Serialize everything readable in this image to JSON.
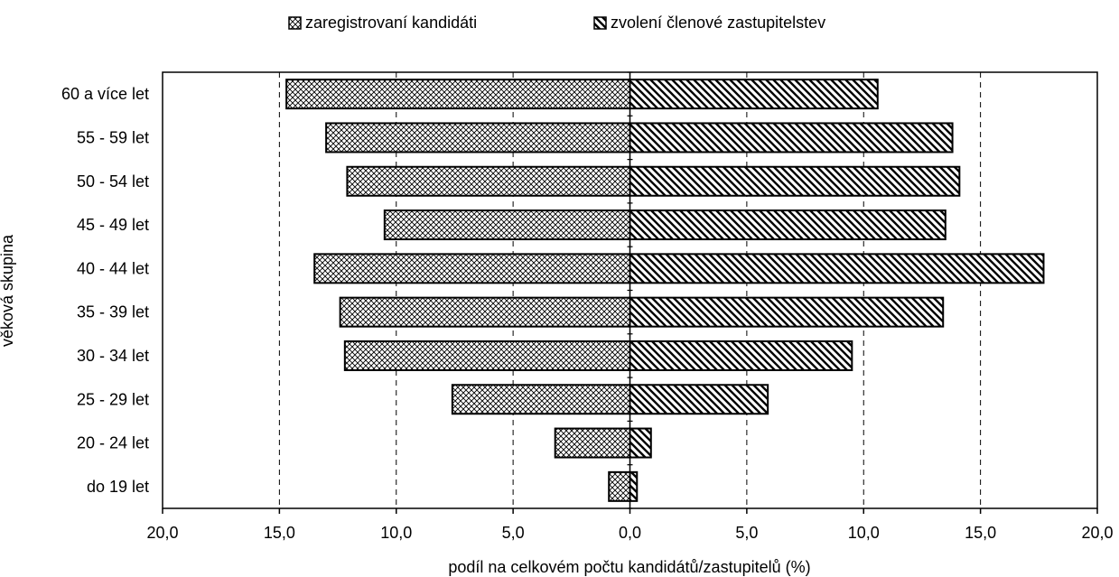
{
  "chart_data": {
    "type": "bar",
    "orientation": "horizontal-diverging",
    "categories": [
      "60 a více let",
      "55 - 59 let",
      "50 - 54 let",
      "45 - 49 let",
      "40 - 44 let",
      "35 - 39 let",
      "30 - 34 let",
      "25 - 29 let",
      "20 - 24 let",
      "do 19 let"
    ],
    "series": [
      {
        "name": "zaregistrovaní kandidáti",
        "direction": "left",
        "pattern": "crosshatch",
        "values": [
          14.7,
          13.0,
          12.1,
          10.5,
          13.5,
          12.4,
          12.2,
          7.6,
          3.2,
          0.9
        ]
      },
      {
        "name": "zvolení členové zastupitelstev",
        "direction": "right",
        "pattern": "diagonal",
        "values": [
          10.6,
          13.8,
          14.1,
          13.5,
          17.7,
          13.4,
          9.5,
          5.9,
          0.9,
          0.3
        ]
      }
    ],
    "xlabel": "podíl na celkovém počtu kandidátů/zastupitelů (%)",
    "ylabel": "věková skupina",
    "xlim": [
      -20,
      20
    ],
    "xticks": [
      -20,
      -15,
      -10,
      -5,
      0,
      5,
      10,
      15,
      20
    ],
    "xtick_labels": [
      "20,0",
      "15,0",
      "10,0",
      "5,0",
      "0,0",
      "5,0",
      "10,0",
      "15,0",
      "20,0"
    ],
    "grid": "vertical dashed",
    "legend": "top",
    "colors": {
      "bar_fill": "#ffffff",
      "bar_stroke": "#000000",
      "grid": "#000000"
    }
  }
}
